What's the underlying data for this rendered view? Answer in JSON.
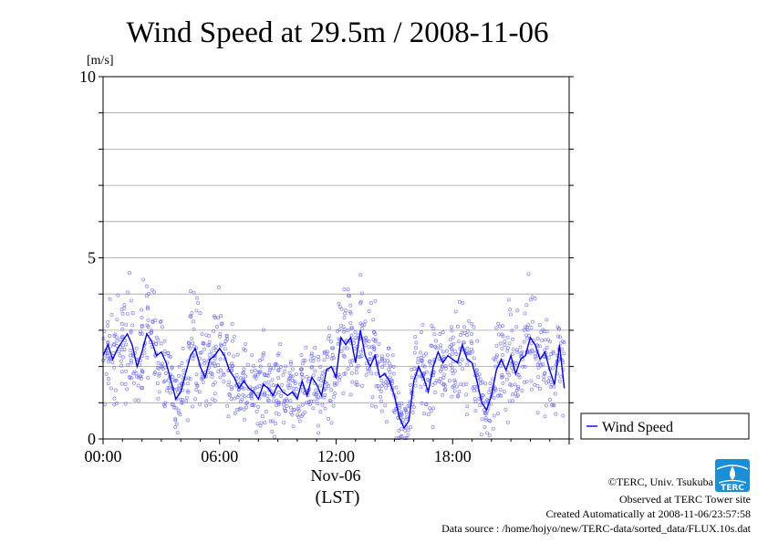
{
  "chart_data": {
    "type": "scatter",
    "title": "Wind Speed at 29.5m / 2008-11-06",
    "ylabel": "[m/s]",
    "xlabel": "Nov-06",
    "xlabel2": "(LST)",
    "ylim": [
      0,
      10
    ],
    "xlim": [
      0,
      24
    ],
    "yticks": [
      {
        "value": 0,
        "label": "0"
      },
      {
        "value": 5,
        "label": "5"
      },
      {
        "value": 10,
        "label": "10"
      }
    ],
    "y_minor_grid_step": 1,
    "xticks": [
      {
        "value": 0,
        "label": "00:00"
      },
      {
        "value": 6,
        "label": "06:00"
      },
      {
        "value": 12,
        "label": "12:00"
      },
      {
        "value": 18,
        "label": "18:00"
      }
    ],
    "grid": true,
    "legend": "right",
    "series": [
      {
        "name": "Wind Speed",
        "color": "#0000ff",
        "style": "line with scattered 10-second sample circles",
        "x": [
          0.0,
          0.25,
          0.5,
          0.75,
          1.0,
          1.25,
          1.5,
          1.75,
          2.0,
          2.25,
          2.5,
          2.75,
          3.0,
          3.25,
          3.5,
          3.75,
          4.0,
          4.25,
          4.5,
          4.75,
          5.0,
          5.25,
          5.5,
          5.75,
          6.0,
          6.25,
          6.5,
          6.75,
          7.0,
          7.25,
          7.5,
          7.75,
          8.0,
          8.25,
          8.5,
          8.75,
          9.0,
          9.25,
          9.5,
          9.75,
          10.0,
          10.25,
          10.5,
          10.75,
          11.0,
          11.25,
          11.5,
          11.75,
          12.0,
          12.25,
          12.5,
          12.75,
          13.0,
          13.25,
          13.5,
          13.75,
          14.0,
          14.25,
          14.5,
          14.75,
          15.0,
          15.25,
          15.5,
          15.75,
          16.0,
          16.25,
          16.5,
          16.75,
          17.0,
          17.25,
          17.5,
          17.75,
          18.0,
          18.25,
          18.5,
          18.75,
          19.0,
          19.25,
          19.5,
          19.75,
          20.0,
          20.25,
          20.5,
          20.75,
          21.0,
          21.25,
          21.5,
          21.75,
          22.0,
          22.25,
          22.5,
          22.75,
          23.0,
          23.25,
          23.5,
          23.75
        ],
        "y": [
          2.3,
          2.6,
          2.2,
          2.5,
          2.7,
          2.9,
          2.6,
          2.0,
          2.4,
          2.9,
          2.7,
          2.3,
          2.4,
          2.1,
          1.6,
          1.1,
          1.3,
          1.8,
          2.3,
          2.5,
          2.0,
          1.7,
          2.2,
          2.3,
          2.5,
          2.3,
          1.9,
          1.7,
          1.4,
          1.6,
          1.4,
          1.3,
          1.1,
          1.5,
          1.4,
          1.2,
          1.5,
          1.3,
          1.2,
          1.3,
          1.1,
          1.6,
          1.2,
          1.7,
          1.5,
          1.2,
          1.9,
          2.0,
          1.7,
          2.8,
          2.6,
          2.8,
          2.1,
          3.0,
          2.3,
          2.0,
          2.3,
          1.7,
          1.8,
          1.6,
          1.2,
          0.6,
          0.3,
          0.5,
          1.6,
          2.0,
          1.7,
          1.3,
          2.0,
          2.4,
          2.1,
          2.3,
          2.2,
          2.1,
          2.6,
          2.2,
          2.1,
          1.6,
          1.0,
          0.8,
          1.2,
          1.9,
          2.2,
          1.9,
          2.3,
          1.8,
          2.2,
          2.3,
          2.8,
          2.6,
          2.2,
          2.4,
          1.9,
          1.5,
          2.6,
          1.4
        ]
      }
    ]
  },
  "credits": {
    "copyright": "©TERC, Univ. Tsukuba",
    "observed": "Observed at TERC Tower site",
    "created": "Created Automatically at 2008-11-06/23:57:58",
    "source": "Data source : /home/hojyo/new/TERC-data/sorted_data/FLUX.10s.dat"
  },
  "logo": {
    "text": "TERC",
    "icon": "terc-logo-icon",
    "color": "#1a8fd8"
  }
}
